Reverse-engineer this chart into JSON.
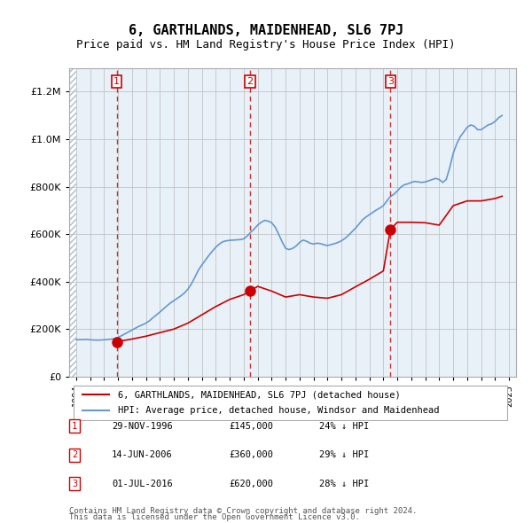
{
  "title": "6, GARTHLANDS, MAIDENHEAD, SL6 7PJ",
  "subtitle": "Price paid vs. HM Land Registry's House Price Index (HPI)",
  "legend_line1": "6, GARTHLANDS, MAIDENHEAD, SL6 7PJ (detached house)",
  "legend_line2": "HPI: Average price, detached house, Windsor and Maidenhead",
  "footer1": "Contains HM Land Registry data © Crown copyright and database right 2024.",
  "footer2": "This data is licensed under the Open Government Licence v3.0.",
  "transactions": [
    {
      "num": 1,
      "date": "29-NOV-1996",
      "price": "£145,000",
      "hpi_note": "24% ↓ HPI",
      "year": 1996.91
    },
    {
      "num": 2,
      "date": "14-JUN-2006",
      "price": "£360,000",
      "hpi_note": "29% ↓ HPI",
      "year": 2006.45
    },
    {
      "num": 3,
      "date": "01-JUL-2016",
      "price": "£620,000",
      "hpi_note": "28% ↓ HPI",
      "year": 2016.5
    }
  ],
  "transaction_prices": [
    145000,
    360000,
    620000
  ],
  "ylim": [
    0,
    1300000
  ],
  "xlim_start": 1993.5,
  "xlim_end": 2025.5,
  "hatch_end_year": 1994.0,
  "background_color": "#ffffff",
  "plot_bg_color": "#e8f0f8",
  "hatch_color": "#c8d8e8",
  "red_line_color": "#cc0000",
  "blue_line_color": "#6699cc",
  "grid_color": "#bbbbbb",
  "hpi_data": {
    "years": [
      1994.0,
      1994.25,
      1994.5,
      1994.75,
      1995.0,
      1995.25,
      1995.5,
      1995.75,
      1996.0,
      1996.25,
      1996.5,
      1996.75,
      1997.0,
      1997.25,
      1997.5,
      1997.75,
      1998.0,
      1998.25,
      1998.5,
      1998.75,
      1999.0,
      1999.25,
      1999.5,
      1999.75,
      2000.0,
      2000.25,
      2000.5,
      2000.75,
      2001.0,
      2001.25,
      2001.5,
      2001.75,
      2002.0,
      2002.25,
      2002.5,
      2002.75,
      2003.0,
      2003.25,
      2003.5,
      2003.75,
      2004.0,
      2004.25,
      2004.5,
      2004.75,
      2005.0,
      2005.25,
      2005.5,
      2005.75,
      2006.0,
      2006.25,
      2006.5,
      2006.75,
      2007.0,
      2007.25,
      2007.5,
      2007.75,
      2008.0,
      2008.25,
      2008.5,
      2008.75,
      2009.0,
      2009.25,
      2009.5,
      2009.75,
      2010.0,
      2010.25,
      2010.5,
      2010.75,
      2011.0,
      2011.25,
      2011.5,
      2011.75,
      2012.0,
      2012.25,
      2012.5,
      2012.75,
      2013.0,
      2013.25,
      2013.5,
      2013.75,
      2014.0,
      2014.25,
      2014.5,
      2014.75,
      2015.0,
      2015.25,
      2015.5,
      2015.75,
      2016.0,
      2016.25,
      2016.5,
      2016.75,
      2017.0,
      2017.25,
      2017.5,
      2017.75,
      2018.0,
      2018.25,
      2018.5,
      2018.75,
      2019.0,
      2019.25,
      2019.5,
      2019.75,
      2020.0,
      2020.25,
      2020.5,
      2020.75,
      2021.0,
      2021.25,
      2021.5,
      2021.75,
      2022.0,
      2022.25,
      2022.5,
      2022.75,
      2023.0,
      2023.25,
      2023.5,
      2023.75,
      2024.0,
      2024.25,
      2024.5
    ],
    "values": [
      155000,
      155500,
      156000,
      156500,
      155000,
      154000,
      153500,
      154000,
      155000,
      156000,
      157500,
      160000,
      165000,
      172000,
      180000,
      188000,
      196000,
      204000,
      212000,
      218000,
      225000,
      235000,
      248000,
      260000,
      272000,
      285000,
      298000,
      310000,
      320000,
      330000,
      340000,
      352000,
      368000,
      390000,
      418000,
      448000,
      470000,
      490000,
      510000,
      528000,
      545000,
      558000,
      568000,
      572000,
      574000,
      575000,
      576000,
      577000,
      580000,
      592000,
      608000,
      622000,
      638000,
      650000,
      658000,
      655000,
      648000,
      630000,
      600000,
      568000,
      540000,
      535000,
      540000,
      550000,
      565000,
      575000,
      570000,
      562000,
      558000,
      562000,
      560000,
      555000,
      552000,
      556000,
      560000,
      565000,
      572000,
      582000,
      595000,
      610000,
      625000,
      642000,
      660000,
      672000,
      682000,
      692000,
      702000,
      710000,
      720000,
      740000,
      758000,
      768000,
      782000,
      798000,
      808000,
      812000,
      818000,
      822000,
      820000,
      818000,
      820000,
      825000,
      830000,
      835000,
      830000,
      818000,
      830000,
      880000,
      940000,
      980000,
      1010000,
      1030000,
      1050000,
      1060000,
      1055000,
      1040000,
      1040000,
      1050000,
      1060000,
      1065000,
      1075000,
      1090000,
      1100000
    ]
  },
  "price_paid_data": {
    "years": [
      1996.91,
      2006.45,
      2016.5
    ],
    "values": [
      145000,
      360000,
      620000
    ],
    "interpolated_years": [
      1996.91,
      1997.0,
      1998.0,
      1999.0,
      2000.0,
      2001.0,
      2002.0,
      2003.0,
      2004.0,
      2005.0,
      2006.0,
      2006.45,
      2007.0,
      2008.0,
      2009.0,
      2010.0,
      2011.0,
      2012.0,
      2013.0,
      2014.0,
      2015.0,
      2016.0,
      2016.5,
      2017.0,
      2018.0,
      2019.0,
      2020.0,
      2021.0,
      2022.0,
      2023.0,
      2024.0,
      2024.5
    ],
    "interpolated_values": [
      145000,
      148000,
      158000,
      170000,
      185000,
      200000,
      225000,
      260000,
      295000,
      325000,
      345000,
      360000,
      380000,
      360000,
      335000,
      345000,
      335000,
      330000,
      345000,
      378000,
      410000,
      445000,
      620000,
      650000,
      650000,
      648000,
      638000,
      720000,
      740000,
      740000,
      750000,
      760000
    ]
  }
}
